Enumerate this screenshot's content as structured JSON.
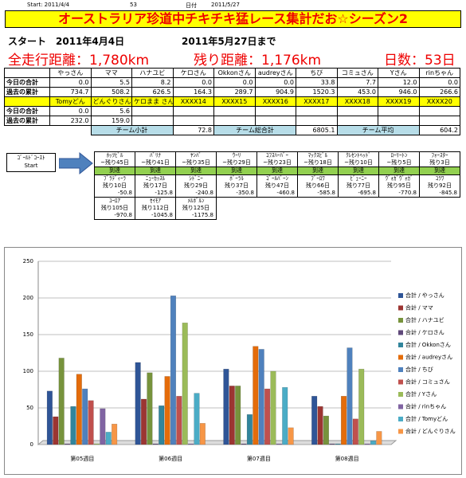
{
  "header": {
    "start": "Start: 2011/4/4",
    "days": "53",
    "date_label": "日付",
    "end": "2011/5/27"
  },
  "title": "オーストラリア珍道中チキチキ猛レース集計だお☆シーズン2",
  "summary": {
    "start": "スタート　2011年4月4日",
    "until": "2011年5月27日まで",
    "total": "全走行距離：1,780km",
    "remaining": "残り距離：1,176km",
    "days": "日数：53日"
  },
  "table": {
    "row_labels": [
      "今日の合計",
      "過去の累計"
    ],
    "groups": [
      {
        "names": [
          "やっさん",
          "ママ",
          "ハナユビ",
          "ケロさん",
          "Okkonさん",
          "audreyさん",
          "ちび",
          "コミュさん",
          "Yさん",
          "rinちゃん"
        ],
        "today": [
          "0.0",
          "5.5",
          "8.2",
          "0.0",
          "0.0",
          "0.0",
          "33.8",
          "7.7",
          "12.0",
          "0.0"
        ],
        "past": [
          "734.7",
          "508.2",
          "626.5",
          "164.3",
          "289.7",
          "904.9",
          "1520.3",
          "453.0",
          "946.0",
          "266.6"
        ]
      },
      {
        "names": [
          "Tomyどん",
          "どんぐりさん",
          "ケロまま さん",
          "XXXX14",
          "XXXX15",
          "XXXX16",
          "XXXX17",
          "XXXX18",
          "XXXX19",
          "XXXX20"
        ],
        "today": [
          "0.0",
          "5.6"
        ],
        "past": [
          "232.0",
          "159.0"
        ]
      }
    ],
    "footer": [
      {
        "label": "チーム小計",
        "value": "72.8"
      },
      {
        "label": "チーム総合計",
        "value": "6805.1"
      },
      {
        "label": "チーム平均",
        "value": "604.2"
      }
    ]
  },
  "route": {
    "start": [
      "ｺﾞｰﾙﾄﾞｺｰｽﾄ",
      "Start"
    ],
    "reached": [
      {
        "name": "ﾎｯﾂﾋﾞﾙ",
        "days": "~残り45日",
        "status": "到達"
      },
      {
        "name": "ﾊﾞﾘﾅ",
        "days": "~残り41日",
        "status": "到達"
      },
      {
        "name": "ﾔﾝﾊﾞ",
        "days": "~残り35日",
        "status": "到達"
      },
      {
        "name": "ｳｰﾘ",
        "days": "~残り29日",
        "status": "到達"
      },
      {
        "name": "ｺﾌｽﾊｰﾊﾞｰ",
        "days": "~残り23日",
        "status": "到達"
      },
      {
        "name": "ﾏｯｸｽﾋﾞﾙ",
        "days": "~残り18日",
        "status": "到達"
      },
      {
        "name": "ｸﾚｾﾝﾄﾍｯﾄﾞ",
        "days": "~残り10日",
        "status": "到達"
      },
      {
        "name": "ﾛｰﾘｰﾄﾝ",
        "days": "~残り5日",
        "status": "到達"
      },
      {
        "name": "ﾌｫｰｽﾀｰ",
        "days": "残り3日",
        "status": "到達"
      }
    ],
    "upcoming": [
      {
        "name": "ﾌﾞﾗﾃﾞｨｰﾗ",
        "days": "残り10日",
        "distance": "-50.8"
      },
      {
        "name": "ﾆｭｰｶｯｽﾙ",
        "days": "残り17日",
        "distance": "-125.8"
      },
      {
        "name": "ｼﾄﾞﾆｰ",
        "days": "残り29日",
        "distance": "-240.8"
      },
      {
        "name": "ﾎﾞｰﾗﾙ",
        "days": "残り37日",
        "distance": "-350.8"
      },
      {
        "name": "ｺﾞｰﾙﾊﾞｰﾝ",
        "days": "残り47日",
        "distance": "-460.8"
      },
      {
        "name": "ﾌﾞｰﾛﾜ",
        "days": "残り66日",
        "distance": "-585.8"
      },
      {
        "name": "ﾋﾞｭｰﾆｰ",
        "days": "残り77日",
        "distance": "-695.8"
      },
      {
        "name": "ｳﾞｫｶﾞｳﾞｫｶﾞ",
        "days": "残り95日",
        "distance": "-770.8"
      },
      {
        "name": "ｺﾗﾜ",
        "days": "残り92日",
        "distance": "-845.8"
      },
      {
        "name": "ﾕｰﾛｱ",
        "days": "残り105日",
        "distance": "-970.8"
      },
      {
        "name": "ｾｲﾓｱ",
        "days": "残り112日",
        "distance": "-1045.8"
      },
      {
        "name": "ﾒﾙﾎﾞﾙﾝ",
        "days": "残り125日",
        "distance": "-1175.8"
      }
    ]
  },
  "chart_data": {
    "type": "bar",
    "categories": [
      "第05週目",
      "第06週目",
      "第07週目",
      "第08週目"
    ],
    "ylim": [
      0,
      250
    ],
    "yticks": [
      0,
      50,
      100,
      150,
      200,
      250
    ],
    "grid": true,
    "series": [
      {
        "name": "合計 / やっさん",
        "color": "#2f5597",
        "values": [
          73,
          112,
          103,
          66
        ]
      },
      {
        "name": "合計 / ママ",
        "color": "#9c3532",
        "values": [
          38,
          62,
          80,
          52
        ]
      },
      {
        "name": "合計 / ハナユビ",
        "color": "#77933c",
        "values": [
          118,
          98,
          80,
          39
        ]
      },
      {
        "name": "合計 / ケロさん",
        "color": "#5f497a",
        "values": [
          1,
          1,
          1,
          1
        ]
      },
      {
        "name": "合計 / Okkonさん",
        "color": "#31859c",
        "values": [
          52,
          53,
          41,
          1
        ]
      },
      {
        "name": "合計 / audreyさん",
        "color": "#e46c0a",
        "values": [
          96,
          93,
          134,
          66
        ]
      },
      {
        "name": "合計 / ちび",
        "color": "#4f81bd",
        "values": [
          76,
          203,
          130,
          132
        ]
      },
      {
        "name": "合計 / コミュさん",
        "color": "#c0504d",
        "values": [
          60,
          66,
          76,
          35
        ]
      },
      {
        "name": "合計 / Yさん",
        "color": "#9bbb59",
        "values": [
          1,
          166,
          100,
          103
        ]
      },
      {
        "name": "合計 / rinちゃん",
        "color": "#8064a2",
        "values": [
          49,
          1,
          1,
          1
        ]
      },
      {
        "name": "合計 / Tomyどん",
        "color": "#4bacc6",
        "values": [
          17,
          70,
          78,
          5
        ]
      },
      {
        "name": "合計 / どんぐりさん",
        "color": "#f79646",
        "values": [
          28,
          29,
          23,
          18
        ]
      }
    ]
  }
}
